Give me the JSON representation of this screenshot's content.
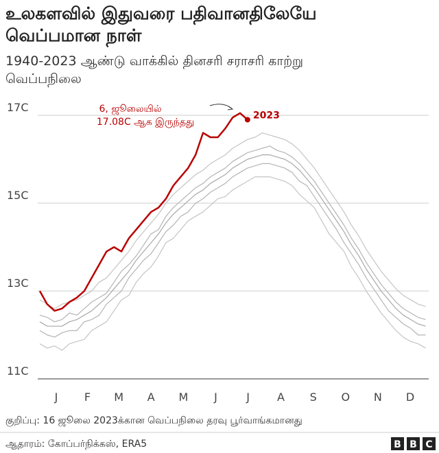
{
  "chart_data": {
    "type": "line",
    "title": [
      "உலகளவில் இதுவரை பதிவானதிலேயே",
      "வெப்பமான நாள்"
    ],
    "subtitle": [
      "1940-2023 ஆண்டு வாக்கில் தினசரி சராசரி காற்று",
      "வெப்பநிலை"
    ],
    "annotation": [
      "6, ஜூலையில்",
      "17.08C ஆக இருந்தது"
    ],
    "note": "குறிப்பு: 16 ஜூலை 2023க்கான வெப்பநிலை தரவு பூர்வாங்கமானது",
    "source": "ஆதாரம்: கோப்பர்நிக்கஸ், ERA5",
    "logo": [
      "B",
      "B",
      "C"
    ],
    "grid": true,
    "xlim": [
      0,
      365
    ],
    "xticks": [
      {
        "value": 15.5,
        "label": "J"
      },
      {
        "value": 45,
        "label": "F"
      },
      {
        "value": 74.5,
        "label": "M"
      },
      {
        "value": 105,
        "label": "A"
      },
      {
        "value": 135.5,
        "label": "M"
      },
      {
        "value": 166,
        "label": "J"
      },
      {
        "value": 196.5,
        "label": "J"
      },
      {
        "value": 227.5,
        "label": "A"
      },
      {
        "value": 258,
        "label": "S"
      },
      {
        "value": 288.5,
        "label": "O"
      },
      {
        "value": 319,
        "label": "N"
      },
      {
        "value": 349.5,
        "label": "D"
      }
    ],
    "ylim": [
      11,
      17.3
    ],
    "yticks": [
      {
        "value": 11,
        "label": "11C"
      },
      {
        "value": 13,
        "label": "13C"
      },
      {
        "value": 15,
        "label": "15C"
      },
      {
        "value": 17,
        "label": "17C"
      }
    ],
    "x": [
      0,
      7,
      14,
      21,
      28,
      35,
      42,
      49,
      56,
      63,
      70,
      77,
      84,
      91,
      98,
      105,
      112,
      119,
      126,
      133,
      140,
      147,
      154,
      161,
      168,
      175,
      182,
      189,
      196,
      203,
      210,
      217,
      224,
      231,
      238,
      245,
      252,
      259,
      266,
      273,
      280,
      287,
      294,
      301,
      308,
      315,
      322,
      329,
      336,
      343,
      350,
      357,
      364
    ],
    "series": [
      {
        "color": "#c4c4c4",
        "values": [
          11.8,
          11.7,
          11.75,
          11.65,
          11.8,
          11.85,
          11.9,
          12.1,
          12.2,
          12.3,
          12.55,
          12.8,
          12.9,
          13.2,
          13.4,
          13.55,
          13.8,
          14.1,
          14.2,
          14.4,
          14.6,
          14.7,
          14.8,
          14.95,
          15.1,
          15.15,
          15.3,
          15.4,
          15.5,
          15.6,
          15.6,
          15.6,
          15.55,
          15.5,
          15.4,
          15.2,
          15.05,
          14.9,
          14.6,
          14.3,
          14.1,
          13.9,
          13.55,
          13.3,
          13.0,
          12.75,
          12.5,
          12.3,
          12.1,
          11.95,
          11.85,
          11.8,
          11.7
        ]
      },
      {
        "color": "#b4b4b4",
        "values": [
          12.1,
          12.0,
          11.95,
          12.05,
          12.1,
          12.1,
          12.3,
          12.35,
          12.45,
          12.7,
          12.85,
          13.0,
          13.3,
          13.5,
          13.7,
          13.85,
          14.1,
          14.35,
          14.5,
          14.7,
          14.8,
          15.0,
          15.1,
          15.25,
          15.35,
          15.45,
          15.6,
          15.7,
          15.8,
          15.85,
          15.9,
          15.9,
          15.85,
          15.8,
          15.7,
          15.5,
          15.4,
          15.15,
          14.9,
          14.65,
          14.4,
          14.1,
          13.85,
          13.6,
          13.3,
          13.05,
          12.8,
          12.55,
          12.4,
          12.25,
          12.15,
          12.0,
          12.0
        ]
      },
      {
        "color": "#a8a8a8",
        "values": [
          12.3,
          12.2,
          12.2,
          12.2,
          12.3,
          12.35,
          12.45,
          12.55,
          12.7,
          12.85,
          13.05,
          13.25,
          13.45,
          13.7,
          13.9,
          14.1,
          14.3,
          14.55,
          14.75,
          14.9,
          15.05,
          15.2,
          15.3,
          15.45,
          15.55,
          15.65,
          15.8,
          15.9,
          16.0,
          16.05,
          16.1,
          16.1,
          16.05,
          16.0,
          15.9,
          15.75,
          15.55,
          15.35,
          15.1,
          14.85,
          14.6,
          14.35,
          14.05,
          13.8,
          13.5,
          13.25,
          13.0,
          12.8,
          12.6,
          12.45,
          12.35,
          12.25,
          12.2
        ]
      },
      {
        "color": "#b4b4b4",
        "values": [
          12.45,
          12.4,
          12.3,
          12.35,
          12.5,
          12.45,
          12.6,
          12.75,
          12.85,
          12.95,
          13.2,
          13.45,
          13.6,
          13.8,
          14.05,
          14.3,
          14.4,
          14.7,
          14.9,
          15.05,
          15.2,
          15.35,
          15.45,
          15.6,
          15.7,
          15.8,
          15.95,
          16.05,
          16.15,
          16.2,
          16.25,
          16.3,
          16.2,
          16.15,
          16.05,
          15.9,
          15.7,
          15.5,
          15.25,
          15.0,
          14.75,
          14.5,
          14.2,
          13.95,
          13.65,
          13.4,
          13.15,
          12.95,
          12.75,
          12.6,
          12.5,
          12.4,
          12.35
        ]
      },
      {
        "color": "#c4c4c4",
        "values": [
          12.8,
          12.7,
          12.6,
          12.7,
          12.75,
          12.8,
          12.9,
          13.0,
          13.2,
          13.3,
          13.5,
          13.7,
          13.9,
          14.15,
          14.35,
          14.55,
          14.75,
          15.0,
          15.2,
          15.35,
          15.5,
          15.65,
          15.75,
          15.9,
          16.0,
          16.1,
          16.25,
          16.35,
          16.45,
          16.5,
          16.6,
          16.55,
          16.5,
          16.45,
          16.35,
          16.2,
          16.0,
          15.8,
          15.55,
          15.3,
          15.05,
          14.8,
          14.5,
          14.25,
          13.95,
          13.7,
          13.45,
          13.25,
          13.05,
          12.9,
          12.8,
          12.7,
          12.65
        ]
      },
      {
        "name": "2023",
        "color": "#b80000",
        "values": [
          13.0,
          12.7,
          12.55,
          12.6,
          12.75,
          12.85,
          13.0,
          13.3,
          13.6,
          13.9,
          14.0,
          13.9,
          14.2,
          14.4,
          14.6,
          14.8,
          14.9,
          15.1,
          15.4,
          15.6,
          15.8,
          16.1,
          16.6,
          16.5,
          16.5,
          16.7,
          16.95,
          17.05,
          16.9,
          null,
          null,
          null,
          null,
          null,
          null,
          null,
          null,
          null,
          null,
          null,
          null,
          null,
          null,
          null,
          null,
          null,
          null,
          null,
          null,
          null,
          null,
          null,
          null
        ]
      }
    ]
  }
}
